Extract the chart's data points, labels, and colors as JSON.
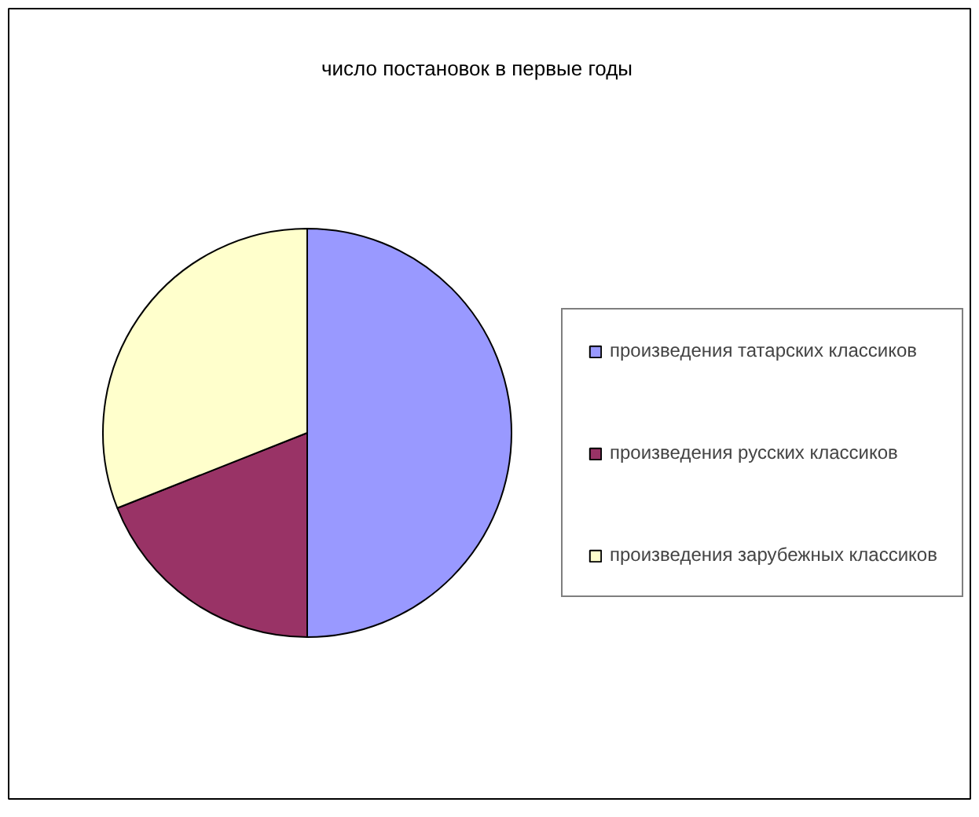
{
  "chart_data": {
    "type": "pie",
    "title": "число постановок в первые годы",
    "categories": [
      "произведения татарских классиков",
      "произведения русских классиков",
      "произведения зарубежных классиков"
    ],
    "values": [
      50,
      19,
      31
    ],
    "colors": [
      "#9999ff",
      "#993366",
      "#ffffcc"
    ],
    "legend": "right"
  }
}
